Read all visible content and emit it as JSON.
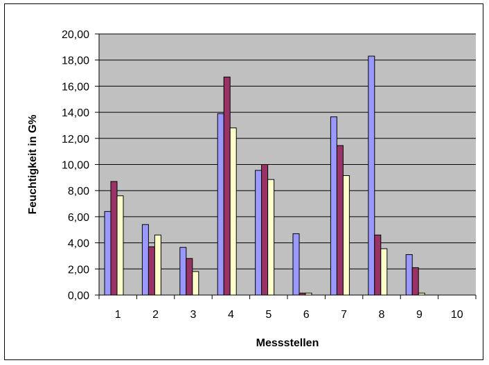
{
  "chart_data": {
    "type": "bar",
    "title": "",
    "xlabel": "Messstellen",
    "ylabel": "Feuchtigkeit in G%",
    "categories": [
      "1",
      "2",
      "3",
      "4",
      "5",
      "6",
      "7",
      "8",
      "9",
      "10"
    ],
    "series": [
      {
        "values": [
          6.4,
          5.4,
          3.65,
          13.9,
          9.55,
          4.7,
          13.65,
          18.3,
          3.1,
          0
        ],
        "color": "#9999ff"
      },
      {
        "values": [
          8.7,
          3.7,
          2.8,
          16.7,
          10.0,
          0.15,
          11.45,
          4.6,
          2.1,
          0
        ],
        "color": "#993366"
      },
      {
        "values": [
          7.6,
          4.6,
          1.8,
          12.8,
          8.85,
          0.15,
          9.15,
          3.55,
          0.15,
          0
        ],
        "color": "#ffffcc"
      }
    ],
    "ylim": [
      0,
      20
    ],
    "yticks": [
      "0,00",
      "2,00",
      "4,00",
      "6,00",
      "8,00",
      "10,00",
      "12,00",
      "14,00",
      "16,00",
      "18,00",
      "20,00"
    ],
    "grid": true,
    "plot_background": "#c0c0c0",
    "legend": "none"
  }
}
